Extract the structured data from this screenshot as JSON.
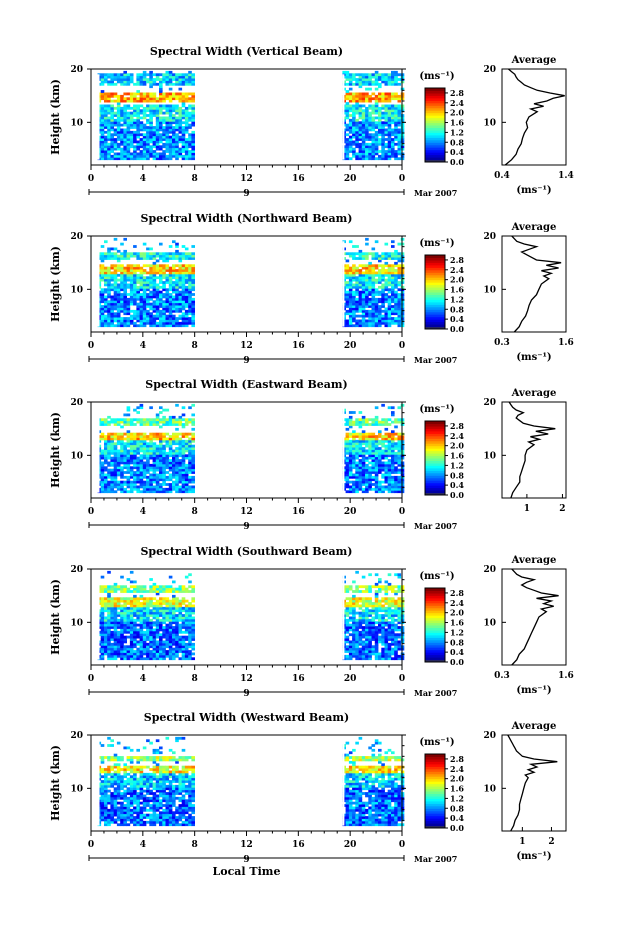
{
  "figure": {
    "xlabel": "Local Time",
    "ylabel": "Height (km)",
    "date_label": "Mar 2007",
    "day_label": "9",
    "cbar_unit": "(ms⁻¹)",
    "avg_title": "Average",
    "avg_xlabel": "(ms⁻¹)"
  },
  "chart_data": [
    {
      "type": "heatmap",
      "title": "Spectral Width (Vertical Beam)",
      "xlabel": "",
      "ylabel": "Height (km)",
      "xlim": [
        0,
        24
      ],
      "ylim": [
        2,
        20
      ],
      "xticks": [
        "0",
        "4",
        "8",
        "12",
        "16",
        "20",
        "0"
      ],
      "yticks": [
        "10",
        "20"
      ],
      "colorbar": {
        "unit": "(ms⁻¹)",
        "ticks": [
          "0.0",
          "0.4",
          "0.8",
          "1.2",
          "1.6",
          "2.0",
          "2.4",
          "2.8"
        ],
        "range": [
          0,
          3.0
        ]
      },
      "data_segments_hours": [
        [
          0.5,
          8.0
        ],
        [
          19.4,
          24.0
        ]
      ],
      "bands": [
        {
          "height_km": [
            13.5,
            15.5
          ],
          "value": 2.1
        },
        {
          "height_km": [
            10.0,
            13.0
          ],
          "value": 1.1
        },
        {
          "height_km": [
            3.0,
            10.0
          ],
          "value": 0.8
        },
        {
          "height_km": [
            16.5,
            19.0
          ],
          "value": 1.0
        }
      ],
      "average_profile": {
        "title": "Average",
        "xlabel": "(ms⁻¹)",
        "xlim": [
          0.4,
          1.4
        ],
        "xticks": [
          "0.4",
          "1.4"
        ],
        "yticks": [
          "10",
          "20"
        ],
        "height_km": [
          2,
          3,
          4,
          5,
          6,
          7,
          8,
          9,
          10,
          11,
          12,
          12.5,
          13,
          13.5,
          14,
          14.5,
          15,
          15.5,
          16,
          16.5,
          17,
          17.5,
          18,
          18.5,
          19,
          19.5,
          20
        ],
        "values": [
          0.45,
          0.55,
          0.62,
          0.65,
          0.7,
          0.72,
          0.75,
          0.8,
          0.78,
          0.82,
          0.95,
          0.85,
          1.05,
          0.9,
          1.1,
          1.2,
          1.38,
          1.15,
          0.95,
          0.85,
          0.75,
          0.7,
          0.65,
          0.62,
          0.6,
          0.55,
          0.5
        ]
      }
    },
    {
      "type": "heatmap",
      "title": "Spectral Width (Northward Beam)",
      "xlabel": "",
      "ylabel": "Height (km)",
      "xlim": [
        0,
        24
      ],
      "ylim": [
        2,
        20
      ],
      "xticks": [
        "0",
        "4",
        "8",
        "12",
        "16",
        "20",
        "0"
      ],
      "yticks": [
        "10",
        "20"
      ],
      "colorbar": {
        "unit": "(ms⁻¹)",
        "ticks": [
          "0.0",
          "0.4",
          "0.8",
          "1.2",
          "1.6",
          "2.0",
          "2.4",
          "2.8"
        ],
        "range": [
          0,
          3.0
        ]
      },
      "data_segments_hours": [
        [
          0.5,
          8.0
        ],
        [
          19.4,
          24.0
        ]
      ],
      "bands": [
        {
          "height_km": [
            12.5,
            14.5
          ],
          "value": 2.0
        },
        {
          "height_km": [
            10.0,
            12.5
          ],
          "value": 1.1
        },
        {
          "height_km": [
            3.0,
            10.0
          ],
          "value": 0.75
        },
        {
          "height_km": [
            15.5,
            16.5
          ],
          "value": 1.2
        }
      ],
      "average_profile": {
        "title": "Average",
        "xlabel": "(ms⁻¹)",
        "xlim": [
          0.3,
          1.6
        ],
        "xticks": [
          "0.3",
          "1.6"
        ],
        "yticks": [
          "10",
          "20"
        ],
        "height_km": [
          2,
          3,
          4,
          5,
          6,
          7,
          8,
          9,
          10,
          11,
          12,
          12.5,
          13,
          13.5,
          14,
          14.5,
          15,
          15.5,
          16,
          16.5,
          17,
          17.5,
          18,
          18.5,
          19,
          19.5,
          20
        ],
        "values": [
          0.55,
          0.65,
          0.7,
          0.78,
          0.82,
          0.85,
          0.9,
          1.0,
          1.05,
          1.1,
          1.25,
          1.15,
          1.3,
          1.1,
          1.45,
          1.2,
          1.5,
          1.0,
          0.9,
          0.8,
          0.7,
          0.85,
          1.0,
          0.75,
          0.6,
          0.55,
          0.5
        ]
      }
    },
    {
      "type": "heatmap",
      "title": "Spectral Width (Eastward Beam)",
      "xlabel": "",
      "ylabel": "Height (km)",
      "xlim": [
        0,
        24
      ],
      "ylim": [
        2,
        20
      ],
      "xticks": [
        "0",
        "4",
        "8",
        "12",
        "16",
        "20",
        "0"
      ],
      "yticks": [
        "10",
        "20"
      ],
      "colorbar": {
        "unit": "(ms⁻¹)",
        "ticks": [
          "0.0",
          "0.4",
          "0.8",
          "1.2",
          "1.6",
          "2.0",
          "2.4",
          "2.8"
        ],
        "range": [
          0,
          3.0
        ]
      },
      "data_segments_hours": [
        [
          0.5,
          8.0
        ],
        [
          19.4,
          24.0
        ]
      ],
      "bands": [
        {
          "height_km": [
            12.5,
            14.0
          ],
          "value": 2.0
        },
        {
          "height_km": [
            10.0,
            12.5
          ],
          "value": 1.1
        },
        {
          "height_km": [
            3.0,
            10.0
          ],
          "value": 0.75
        },
        {
          "height_km": [
            15.5,
            16.5
          ],
          "value": 1.4
        }
      ],
      "average_profile": {
        "title": "Average",
        "xlabel": "",
        "xlim": [
          0.3,
          2.1
        ],
        "xticks": [
          "1",
          "2"
        ],
        "yticks": [
          "10",
          "20"
        ],
        "height_km": [
          2,
          3,
          4,
          5,
          6,
          7,
          8,
          9,
          10,
          11,
          12,
          12.5,
          13,
          13.5,
          14,
          14.5,
          15,
          15.5,
          16,
          16.5,
          17,
          17.5,
          18,
          18.5,
          19,
          19.5,
          20
        ],
        "values": [
          0.55,
          0.6,
          0.7,
          0.8,
          0.8,
          0.85,
          0.9,
          0.95,
          0.95,
          1.0,
          1.2,
          1.05,
          1.35,
          1.1,
          1.6,
          1.25,
          1.8,
          1.2,
          0.9,
          0.8,
          0.7,
          0.75,
          0.9,
          0.7,
          0.6,
          0.55,
          0.5
        ]
      }
    },
    {
      "type": "heatmap",
      "title": "Spectral Width (Southward Beam)",
      "xlabel": "",
      "ylabel": "Height (km)",
      "xlim": [
        0,
        24
      ],
      "ylim": [
        2,
        20
      ],
      "xticks": [
        "0",
        "4",
        "8",
        "12",
        "16",
        "20",
        "0"
      ],
      "yticks": [
        "10",
        "20"
      ],
      "colorbar": {
        "unit": "(ms⁻¹)",
        "ticks": [
          "0.0",
          "0.4",
          "0.8",
          "1.2",
          "1.6",
          "2.0",
          "2.4",
          "2.8"
        ],
        "range": [
          0,
          3.0
        ]
      },
      "data_segments_hours": [
        [
          0.5,
          8.0
        ],
        [
          19.4,
          24.0
        ]
      ],
      "bands": [
        {
          "height_km": [
            12.5,
            14.5
          ],
          "value": 1.8
        },
        {
          "height_km": [
            10.0,
            12.5
          ],
          "value": 1.05
        },
        {
          "height_km": [
            3.0,
            10.0
          ],
          "value": 0.7
        },
        {
          "height_km": [
            15.5,
            16.5
          ],
          "value": 1.5
        }
      ],
      "average_profile": {
        "title": "Average",
        "xlabel": "(ms⁻¹)",
        "xlim": [
          0.3,
          1.6
        ],
        "xticks": [
          "0.3",
          "1.6"
        ],
        "yticks": [
          "10",
          "20"
        ],
        "height_km": [
          2,
          3,
          4,
          5,
          6,
          7,
          8,
          9,
          10,
          11,
          12,
          12.5,
          13,
          13.5,
          14,
          14.5,
          15,
          15.5,
          16,
          16.5,
          17,
          17.5,
          18,
          18.5,
          19,
          19.5,
          20
        ],
        "values": [
          0.5,
          0.6,
          0.65,
          0.75,
          0.8,
          0.85,
          0.9,
          0.95,
          1.0,
          1.05,
          1.2,
          1.1,
          1.35,
          1.15,
          1.3,
          1.0,
          1.45,
          1.1,
          0.95,
          0.8,
          0.7,
          0.8,
          0.95,
          0.7,
          0.6,
          0.55,
          0.5
        ]
      }
    },
    {
      "type": "heatmap",
      "title": "Spectral Width (Westward Beam)",
      "xlabel": "Local Time",
      "ylabel": "Height (km)",
      "xlim": [
        0,
        24
      ],
      "ylim": [
        2,
        20
      ],
      "xticks": [
        "0",
        "4",
        "8",
        "12",
        "16",
        "20",
        "0"
      ],
      "yticks": [
        "10",
        "20"
      ],
      "colorbar": {
        "unit": "(ms⁻¹)",
        "ticks": [
          "0.0",
          "0.4",
          "0.8",
          "1.2",
          "1.6",
          "2.0",
          "2.4",
          "2.8"
        ],
        "range": [
          0,
          3.0
        ]
      },
      "data_segments_hours": [
        [
          0.5,
          8.0
        ],
        [
          19.4,
          24.0
        ]
      ],
      "bands": [
        {
          "height_km": [
            12.5,
            14.0
          ],
          "value": 1.9
        },
        {
          "height_km": [
            10.0,
            12.5
          ],
          "value": 1.0
        },
        {
          "height_km": [
            3.0,
            10.0
          ],
          "value": 0.7
        },
        {
          "height_km": [
            15.0,
            16.0
          ],
          "value": 1.6
        }
      ],
      "average_profile": {
        "title": "Average",
        "xlabel": "(ms⁻¹)",
        "xlim": [
          0.3,
          2.5
        ],
        "xticks": [
          "1",
          "2"
        ],
        "yticks": [
          "10",
          "20"
        ],
        "height_km": [
          2,
          3,
          4,
          5,
          6,
          7,
          8,
          9,
          10,
          11,
          12,
          12.5,
          13,
          13.5,
          14,
          14.5,
          15,
          15.5,
          16,
          16.5,
          17,
          17.5,
          18,
          18.5,
          19,
          19.5,
          20
        ],
        "values": [
          0.6,
          0.7,
          0.75,
          0.85,
          0.9,
          0.9,
          0.95,
          1.0,
          1.05,
          1.1,
          1.2,
          1.1,
          1.4,
          1.2,
          1.5,
          1.3,
          2.2,
          1.4,
          1.0,
          0.9,
          0.8,
          0.75,
          0.7,
          0.65,
          0.6,
          0.55,
          0.5
        ]
      }
    }
  ]
}
